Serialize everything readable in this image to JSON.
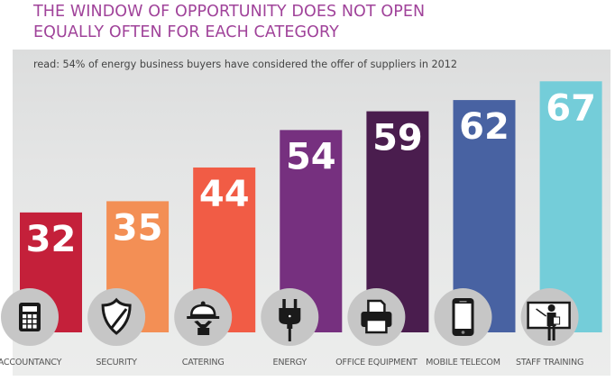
{
  "title_lines": [
    "THE WINDOW OF OPPORTUNITY DOES NOT OPEN",
    "EQUALLY OFTEN FOR EACH CATEGORY"
  ],
  "read_note": "read: 54% of energy business buyers have considered the offer of suppliers in 2012",
  "colors": {
    "title": "#a0439a",
    "icon_circle": "#c6c6c6",
    "icon_dark": "#1a1a1a"
  },
  "chart_data": {
    "type": "bar",
    "title": "THE WINDOW OF OPPORTUNITY DOES NOT OPEN EQUALLY OFTEN FOR EACH CATEGORY",
    "subtitle": "read: 54% of energy business buyers have considered the offer of suppliers in 2012",
    "xlabel": "",
    "ylabel": "",
    "unit": "%",
    "ylim": [
      0,
      70
    ],
    "grid": false,
    "legend": "none",
    "categories": [
      "ACCOUNTANCY",
      "SECURITY",
      "CATERING",
      "ENERGY",
      "OFFICE EQUIPMENT",
      "MOBILE TELECOM",
      "STAFF TRAINING"
    ],
    "values": [
      32,
      35,
      44,
      54,
      59,
      62,
      67
    ],
    "bar_colors": [
      "#c4203a",
      "#f38f55",
      "#f15c45",
      "#76307f",
      "#4a1d4e",
      "#4862a2",
      "#74cdd9"
    ],
    "icons": [
      "calculator-icon",
      "shield-icon",
      "catering-cloche-icon",
      "power-plug-icon",
      "printer-icon",
      "mobile-phone-icon",
      "teacher-board-icon"
    ]
  }
}
